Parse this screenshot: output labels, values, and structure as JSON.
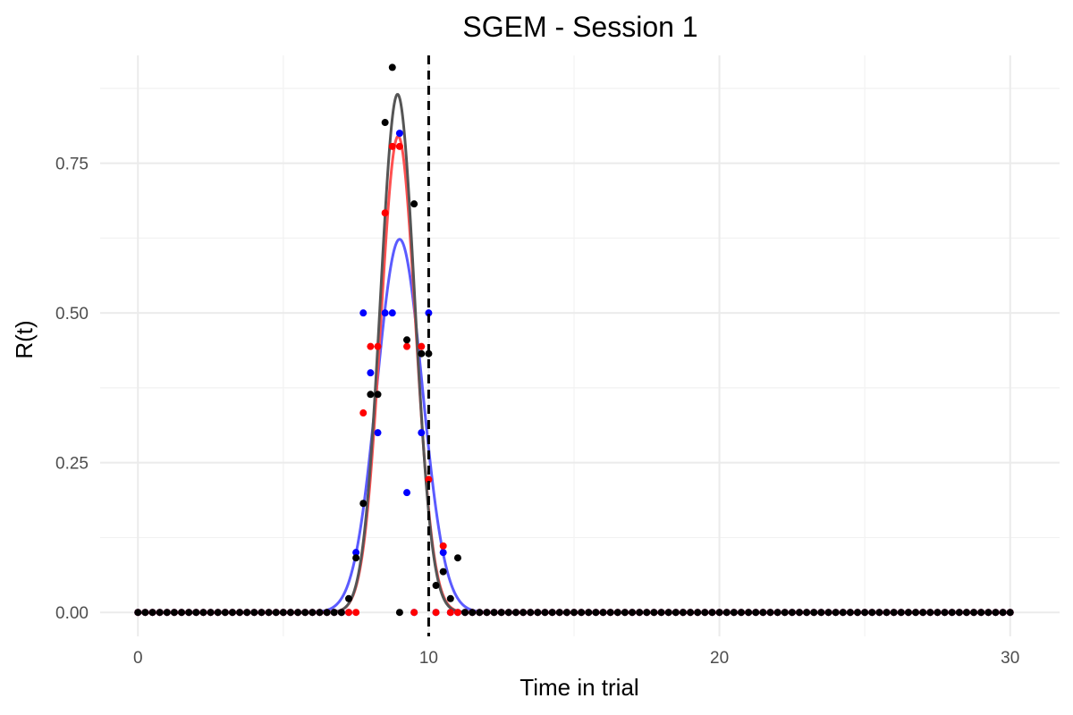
{
  "chart_data": {
    "type": "scatter",
    "title": "SGEM - Session 1",
    "xlabel": "Time in trial",
    "ylabel": "R(t)",
    "xlim": [
      -1.3,
      31.7
    ],
    "ylim": [
      -0.04,
      0.93
    ],
    "x_ticks": [
      0,
      10,
      20,
      30
    ],
    "x_tick_labels": [
      "0",
      "10",
      "20",
      "30"
    ],
    "y_ticks": [
      0,
      0.25,
      0.5,
      0.75
    ],
    "y_tick_labels": [
      "0.00",
      "0.25",
      "0.50",
      "0.75"
    ],
    "grid": true,
    "vline": {
      "x": 10,
      "style": "dashed",
      "color": "#000000"
    },
    "point_step": 0.25,
    "series": [
      {
        "color": "#0000ff",
        "points": [
          [
            7.25,
            0
          ],
          [
            7.5,
            0.1
          ],
          [
            7.75,
            0.5
          ],
          [
            8,
            0.4
          ],
          [
            8.25,
            0.3
          ],
          [
            8.5,
            0.5
          ],
          [
            8.75,
            0.5
          ],
          [
            9,
            0.8
          ],
          [
            9.25,
            0.2
          ],
          [
            9.75,
            0.3
          ],
          [
            10,
            0.5
          ],
          [
            10.25,
            0
          ],
          [
            10.5,
            0.1
          ],
          [
            10.75,
            0
          ],
          [
            11,
            0
          ]
        ],
        "curve": {
          "amplitude": 0.623,
          "mean": 9.0,
          "sd": 0.78,
          "color": "#5b5bff"
        }
      },
      {
        "color": "#ff0000",
        "points": [
          [
            7.5,
            0
          ],
          [
            7.75,
            0.333
          ],
          [
            8,
            0.444
          ],
          [
            8.25,
            0.444
          ],
          [
            8.5,
            0.667
          ],
          [
            8.75,
            0.778
          ],
          [
            9,
            0.778
          ],
          [
            9.25,
            0.444
          ],
          [
            9.75,
            0.444
          ],
          [
            10,
            0.222
          ],
          [
            10.5,
            0.111
          ]
        ],
        "curve": {
          "amplitude": 0.795,
          "mean": 8.95,
          "sd": 0.6,
          "color": "#ff5050"
        }
      },
      {
        "color": "#000000",
        "points": [
          [
            7.25,
            0.023
          ],
          [
            7.5,
            0.091
          ],
          [
            7.75,
            0.182
          ],
          [
            8,
            0.364
          ],
          [
            8.25,
            0.364
          ],
          [
            8.5,
            0.818
          ],
          [
            8.75,
            0.91
          ],
          [
            9.25,
            0.455
          ],
          [
            9.5,
            0.682
          ],
          [
            9.75,
            0.432
          ],
          [
            10,
            0.432
          ],
          [
            10.25,
            0.045
          ],
          [
            10.5,
            0.068
          ],
          [
            10.75,
            0.023
          ],
          [
            11,
            0.091
          ]
        ],
        "curve": {
          "amplitude": 0.865,
          "mean": 8.93,
          "sd": 0.59,
          "color": "#555555"
        }
      }
    ]
  }
}
